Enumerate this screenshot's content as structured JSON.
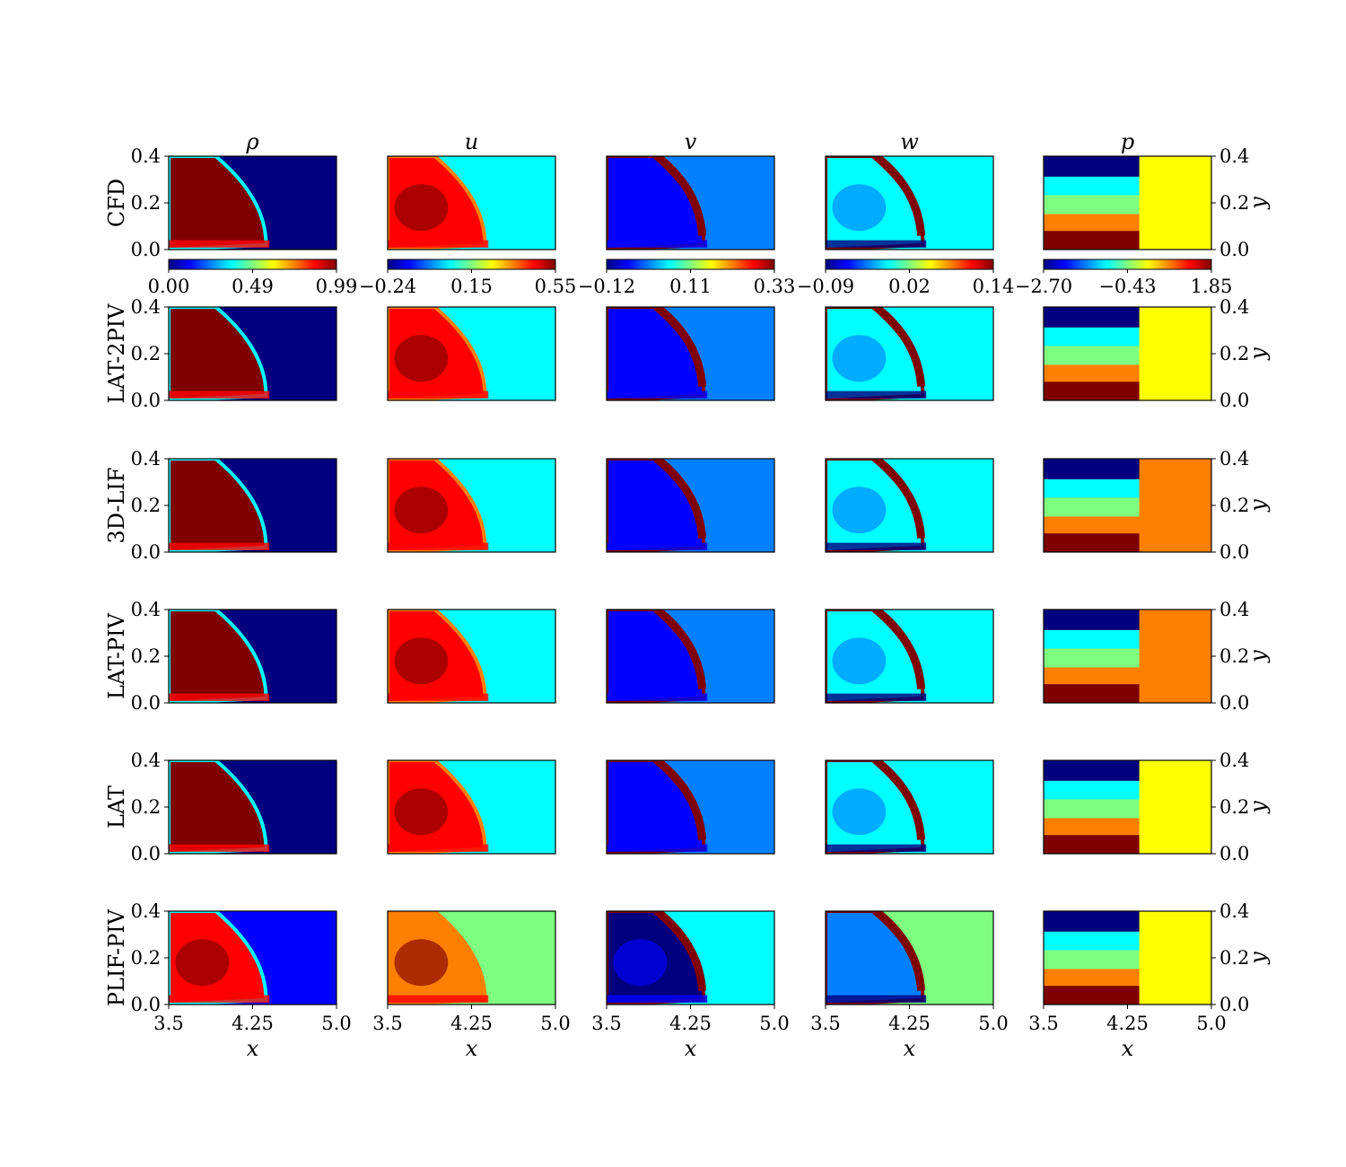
{
  "figure": {
    "colors": [
      "#00007f",
      "#0000ff",
      "#007fff",
      "#00ffff",
      "#7fff7f",
      "#ffff00",
      "#ff7f00",
      "#ff0000",
      "#7f0000"
    ]
  },
  "chart_data": {
    "type": "heatmap",
    "colormap": "jet",
    "columns": [
      {
        "variable": "ρ",
        "colorbar": {
          "ticks": [
            "0.00",
            "0.49",
            "0.99"
          ],
          "range": [
            0.0,
            0.99
          ]
        }
      },
      {
        "variable": "u",
        "colorbar": {
          "ticks": [
            "−0.24",
            "0.15",
            "0.55"
          ],
          "range": [
            -0.24,
            0.55
          ]
        }
      },
      {
        "variable": "v",
        "colorbar": {
          "ticks": [
            "−0.12",
            "0.11",
            "0.33"
          ],
          "range": [
            -0.12,
            0.33
          ]
        }
      },
      {
        "variable": "w",
        "colorbar": {
          "ticks": [
            "−0.09",
            "0.02",
            "0.14"
          ],
          "range": [
            -0.09,
            0.14
          ]
        }
      },
      {
        "variable": "p",
        "colorbar": {
          "ticks": [
            "−2.70",
            "−0.43",
            "1.85"
          ],
          "range": [
            -2.7,
            1.85
          ]
        }
      }
    ],
    "rows": [
      "CFD",
      "LAT-2PIV",
      "3D-LIF",
      "LAT-PIV",
      "LAT",
      "PLIF-PIV"
    ],
    "x_axis": {
      "label": "x",
      "range": [
        3.5,
        5.0
      ],
      "ticks": [
        "3.5",
        "4.25",
        "5.0"
      ]
    },
    "y_axis": {
      "label": "y",
      "range": [
        0.0,
        0.4
      ],
      "ticks": [
        "0.0",
        "0.2",
        "0.4"
      ]
    }
  }
}
